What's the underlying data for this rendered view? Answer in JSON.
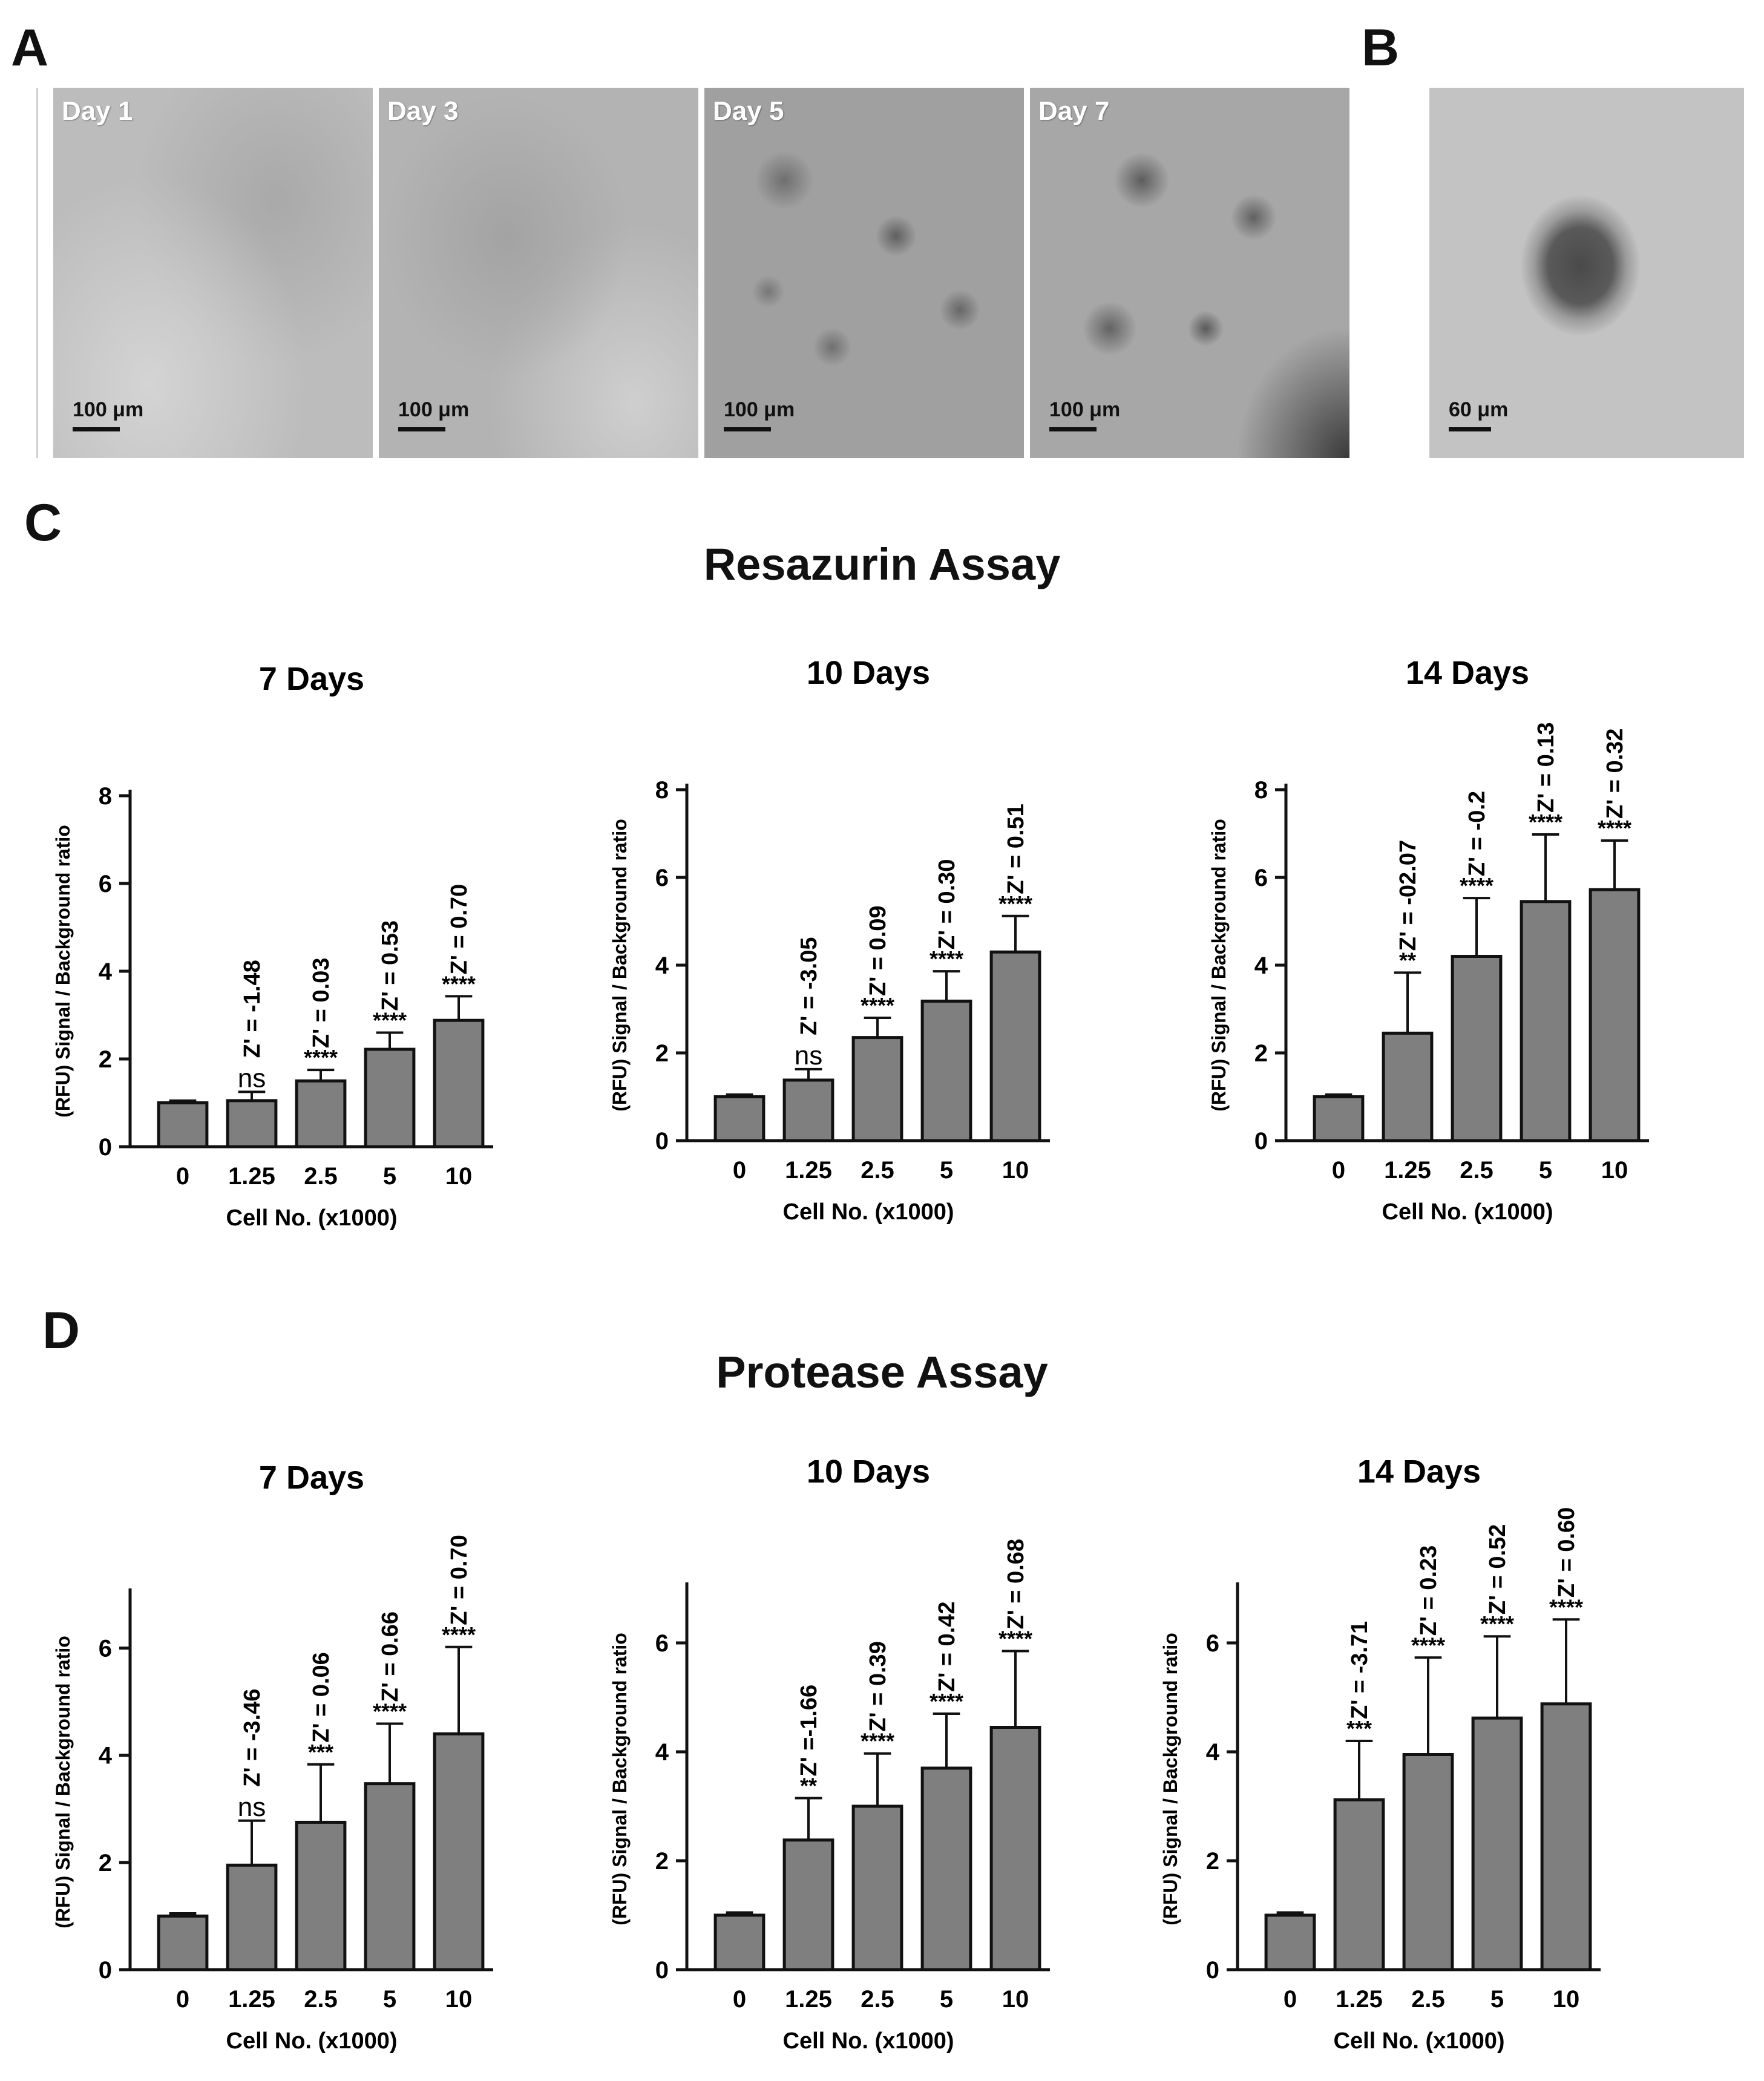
{
  "panels": {
    "a": "A",
    "b": "B",
    "c": "C",
    "d": "D"
  },
  "micrographs": [
    {
      "label": "Day 1",
      "scale": "100 μm"
    },
    {
      "label": "Day 3",
      "scale": "100 μm"
    },
    {
      "label": "Day 5",
      "scale": "100 μm"
    },
    {
      "label": "Day 7",
      "scale": "100 μm"
    }
  ],
  "micrograph_b": {
    "scale": "60 μm"
  },
  "sections": {
    "resazurin_title": "Resazurin Assay",
    "protease_title": "Protease Assay"
  },
  "chart_data": [
    {
      "type": "bar",
      "title": "7 Days",
      "xlabel": "Cell No. (x1000)",
      "ylabel": "(RFU) Signal / Background ratio",
      "categories": [
        "0",
        "1.25",
        "2.5",
        "5",
        "10"
      ],
      "values": [
        1.0,
        1.05,
        1.5,
        2.22,
        2.88
      ],
      "errors": [
        0.05,
        0.2,
        0.25,
        0.38,
        0.55
      ],
      "significance": [
        "",
        "ns",
        "****",
        "****",
        "****"
      ],
      "zprime": [
        "",
        "Z' = -1.48",
        "Z' = 0.03",
        "Z' = 0.53",
        "Z' = 0.70"
      ],
      "ylim": [
        0,
        8
      ],
      "yticks": [
        0,
        2,
        4,
        6,
        8
      ],
      "bar_color": "#7f7f7f"
    },
    {
      "type": "bar",
      "title": "10 Days",
      "xlabel": "Cell No. (x1000)",
      "ylabel": "(RFU) Signal / Background ratio",
      "categories": [
        "0",
        "1.25",
        "2.5",
        "5",
        "10"
      ],
      "values": [
        1.0,
        1.38,
        2.35,
        3.18,
        4.3
      ],
      "errors": [
        0.05,
        0.25,
        0.45,
        0.68,
        0.82
      ],
      "significance": [
        "",
        "ns",
        "****",
        "****",
        "****"
      ],
      "zprime": [
        "",
        "Z' = -3.05",
        "Z' = 0.09",
        "Z' = 0.30",
        "Z' = 0.51"
      ],
      "ylim": [
        0,
        8
      ],
      "yticks": [
        0,
        2,
        4,
        6,
        8
      ],
      "bar_color": "#7f7f7f"
    },
    {
      "type": "bar",
      "title": "14 Days",
      "xlabel": "Cell No. (x1000)",
      "ylabel": "(RFU) Signal / Background ratio",
      "categories": [
        "0",
        "1.25",
        "2.5",
        "5",
        "10"
      ],
      "values": [
        1.0,
        2.45,
        4.2,
        5.45,
        5.72
      ],
      "errors": [
        0.05,
        1.38,
        1.33,
        1.53,
        1.12
      ],
      "significance": [
        "",
        "**",
        "****",
        "****",
        "****"
      ],
      "zprime": [
        "",
        "Z' = -02.07",
        "Z' = -0.2",
        "Z' = 0.13",
        "Z' = 0.32"
      ],
      "ylim": [
        0,
        8
      ],
      "yticks": [
        0,
        2,
        4,
        6,
        8
      ],
      "bar_color": "#7f7f7f"
    },
    {
      "type": "bar",
      "title": "7 Days",
      "xlabel": "Cell No. (x1000)",
      "ylabel": "(RFU) Signal / Background ratio",
      "categories": [
        "0",
        "1.25",
        "2.5",
        "5",
        "10"
      ],
      "values": [
        1.0,
        1.95,
        2.75,
        3.47,
        4.4
      ],
      "errors": [
        0.05,
        0.83,
        1.08,
        1.12,
        1.62
      ],
      "significance": [
        "",
        "ns",
        "***",
        "****",
        "****"
      ],
      "zprime": [
        "",
        "Z' = -3.46",
        "Z' = 0.06",
        "Z' = 0.66",
        "Z' = 0.70"
      ],
      "ylim": [
        0,
        7
      ],
      "yticks": [
        0,
        2,
        4,
        6
      ],
      "bar_color": "#7f7f7f"
    },
    {
      "type": "bar",
      "title": "10 Days",
      "xlabel": "Cell No. (x1000)",
      "ylabel": "(RFU) Signal / Background ratio",
      "categories": [
        "0",
        "1.25",
        "2.5",
        "5",
        "10"
      ],
      "values": [
        1.0,
        2.38,
        3.0,
        3.7,
        4.45
      ],
      "errors": [
        0.05,
        0.77,
        0.97,
        1.0,
        1.4
      ],
      "significance": [
        "",
        "**",
        "****",
        "****",
        "****"
      ],
      "zprime": [
        "",
        "Z' =-1.66",
        "Z' = 0.39",
        "Z' = 0.42",
        "Z' = 0.68"
      ],
      "ylim": [
        0,
        7
      ],
      "yticks": [
        0,
        2,
        4,
        6
      ],
      "bar_color": "#7f7f7f"
    },
    {
      "type": "bar",
      "title": "14 Days",
      "xlabel": "Cell No. (x1000)",
      "ylabel": "(RFU) Signal / Background ratio",
      "categories": [
        "0",
        "1.25",
        "2.5",
        "5",
        "10"
      ],
      "values": [
        1.0,
        3.12,
        3.95,
        4.62,
        4.88
      ],
      "errors": [
        0.05,
        1.08,
        1.78,
        1.5,
        1.55
      ],
      "significance": [
        "",
        "***",
        "****",
        "****",
        "****"
      ],
      "zprime": [
        "",
        "Z' = -3.71",
        "Z' = 0.23",
        "Z' = 0.52",
        "Z' = 0.60"
      ],
      "ylim": [
        0,
        7
      ],
      "yticks": [
        0,
        2,
        4,
        6
      ],
      "bar_color": "#7f7f7f"
    }
  ]
}
